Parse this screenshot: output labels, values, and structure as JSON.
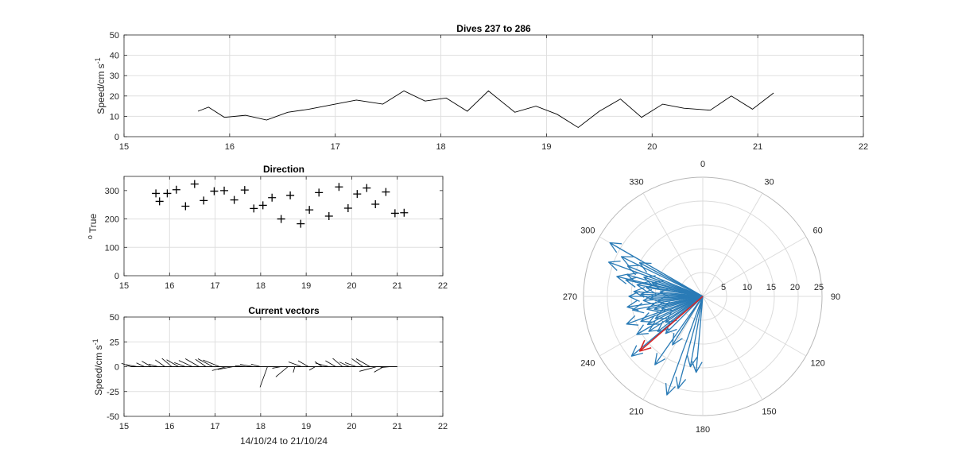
{
  "chart_data": [
    {
      "id": "speed",
      "type": "line",
      "title": "Dives 237 to 286",
      "ylabel": "Speed/cm s",
      "ylabel_sup": "-1",
      "xlim": [
        15,
        22
      ],
      "ylim": [
        0,
        50
      ],
      "xticks": [
        "15",
        "16",
        "17",
        "18",
        "19",
        "20",
        "21",
        "22"
      ],
      "yticks": [
        "0",
        "10",
        "20",
        "30",
        "40",
        "50"
      ],
      "grid": true,
      "line_color": "#000000",
      "x": [
        15.7,
        15.8,
        15.95,
        16.15,
        16.35,
        16.55,
        16.75,
        16.95,
        17.2,
        17.45,
        17.65,
        17.85,
        18.05,
        18.25,
        18.45,
        18.7,
        18.9,
        19.1,
        19.3,
        19.5,
        19.7,
        19.9,
        20.1,
        20.3,
        20.55,
        20.75,
        20.95,
        21.15
      ],
      "y": [
        12.5,
        14.5,
        9.5,
        10.5,
        8.2,
        12,
        13.5,
        15.5,
        18,
        16,
        22.5,
        17.5,
        19,
        12.5,
        22.5,
        12,
        15,
        11,
        4.5,
        12.5,
        18.5,
        9.5,
        16,
        14,
        13,
        20,
        13.5,
        21.5
      ]
    },
    {
      "id": "direction",
      "type": "scatter",
      "title": "Direction",
      "ylabel": "True",
      "ylabel_sup": "o",
      "xlim": [
        15,
        22
      ],
      "ylim": [
        0,
        350
      ],
      "xticks": [
        "15",
        "16",
        "17",
        "18",
        "19",
        "20",
        "21",
        "22"
      ],
      "yticks": [
        "0",
        "100",
        "200",
        "300"
      ],
      "grid": true,
      "marker": "+",
      "marker_color": "#000000",
      "x": [
        15.7,
        15.78,
        15.95,
        16.15,
        16.35,
        16.55,
        16.75,
        16.98,
        17.2,
        17.42,
        17.65,
        17.85,
        18.05,
        18.25,
        18.45,
        18.65,
        18.88,
        19.07,
        19.28,
        19.5,
        19.72,
        19.92,
        20.12,
        20.33,
        20.52,
        20.75,
        20.95,
        21.15
      ],
      "y": [
        290,
        262,
        290,
        303,
        245,
        323,
        265,
        298,
        300,
        267,
        302,
        237,
        248,
        275,
        200,
        283,
        183,
        232,
        293,
        210,
        313,
        238,
        288,
        309,
        252,
        295,
        220,
        222
      ]
    },
    {
      "id": "vectors",
      "type": "line",
      "title": "Current vectors",
      "ylabel": "Speed/cm s",
      "ylabel_sup": "-1",
      "xlabel": "14/10/24 to 21/10/24",
      "xlim": [
        15,
        22
      ],
      "ylim": [
        -50,
        50
      ],
      "xticks": [
        "15",
        "16",
        "17",
        "18",
        "19",
        "20",
        "21",
        "22"
      ],
      "yticks": [
        "-50",
        "-25",
        "0",
        "25",
        "50"
      ],
      "grid": true,
      "line_color": "#000000",
      "origins_x": [
        15.15,
        15.3,
        15.45,
        15.6,
        15.75,
        15.9,
        16.05,
        16.2,
        16.35,
        16.5,
        16.65,
        16.8,
        16.95,
        17.1,
        17.25,
        17.4,
        17.55,
        17.7,
        17.85,
        18.0,
        18.15,
        18.3,
        18.45,
        18.6,
        18.75,
        18.9,
        19.05,
        19.2,
        19.35,
        19.5,
        19.65,
        19.8,
        19.95,
        20.1,
        20.25,
        20.4,
        20.55,
        20.7,
        20.85,
        21.0
      ],
      "speed": [
        10,
        12,
        9,
        11,
        10,
        12,
        13,
        14,
        12,
        15,
        16,
        13,
        17,
        18,
        15,
        16,
        14,
        12,
        14,
        10,
        22,
        8,
        9,
        16,
        6,
        14,
        12,
        7,
        9,
        14,
        12,
        13,
        11,
        12,
        14,
        16,
        18,
        11,
        10,
        8
      ],
      "direction_deg": [
        290,
        280,
        295,
        300,
        285,
        305,
        310,
        300,
        290,
        295,
        300,
        305,
        298,
        292,
        255,
        260,
        270,
        275,
        280,
        285,
        200,
        270,
        260,
        230,
        195,
        290,
        300,
        240,
        305,
        285,
        300,
        310,
        295,
        290,
        305,
        300,
        255,
        240,
        265,
        270
      ]
    },
    {
      "id": "polar",
      "type": "line",
      "subtype": "compass",
      "theta_ticks": [
        "0",
        "30",
        "60",
        "90",
        "120",
        "150",
        "180",
        "210",
        "240",
        "270",
        "300",
        "330"
      ],
      "r_ticks": [
        "5",
        "10",
        "15",
        "20",
        "25"
      ],
      "rlim": [
        0,
        25
      ],
      "grid": true,
      "vector_color": "#2a7bb6",
      "mean_color": "#d62728",
      "directions_deg": [
        300,
        296,
        298,
        290,
        292,
        286,
        288,
        283,
        285,
        280,
        282,
        279,
        276,
        274,
        272,
        270,
        268,
        266,
        264,
        262,
        259,
        257,
        255,
        253,
        250,
        248,
        245,
        243,
        240,
        237,
        235,
        232,
        230,
        225,
        215,
        212,
        200,
        195,
        190,
        185
      ],
      "speeds": [
        22.5,
        19,
        15,
        21,
        17,
        16.5,
        13,
        18.5,
        11,
        14,
        16.5,
        12,
        9,
        14.5,
        13,
        15.5,
        11,
        12.5,
        9.5,
        16,
        15,
        12,
        10.5,
        9,
        17,
        14,
        11,
        13,
        16,
        13.5,
        9.5,
        12,
        19.5,
        11,
        17.5,
        12,
        22,
        20,
        15,
        16
      ],
      "mean_direction_deg": 229,
      "mean_speed": 17.5
    }
  ]
}
